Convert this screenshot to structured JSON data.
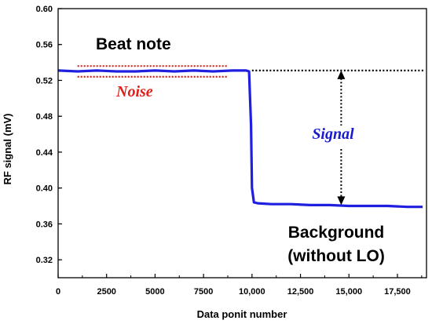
{
  "chart_data": {
    "type": "line",
    "xlabel": "Data ponit number",
    "ylabel": "RF signal (mV)",
    "xlim": [
      0,
      19000
    ],
    "ylim": [
      0.3,
      0.6
    ],
    "x_ticks": [
      0,
      2500,
      5000,
      7500,
      10000,
      12500,
      15000,
      17500
    ],
    "x_tick_labels": [
      "0",
      "2500",
      "5000",
      "7500",
      "10,000",
      "12,500",
      "15,000",
      "17,500"
    ],
    "y_ticks": [
      0.32,
      0.36,
      0.4,
      0.44,
      0.48,
      0.52,
      0.56,
      0.6
    ],
    "y_tick_labels": [
      "0.32",
      "0.36",
      "0.40",
      "0.44",
      "0.48",
      "0.52",
      "0.56",
      "0.60"
    ],
    "grid": false,
    "series": [
      {
        "color": "#1f1fe0",
        "x": [
          0,
          1000,
          2000,
          3000,
          4000,
          5000,
          6000,
          7000,
          8000,
          9000,
          9700,
          9850,
          9950,
          10000,
          10100,
          10300,
          11000,
          12000,
          13000,
          14000,
          15000,
          16000,
          17000,
          18000,
          18800
        ],
        "y": [
          0.531,
          0.53,
          0.531,
          0.53,
          0.53,
          0.531,
          0.53,
          0.531,
          0.53,
          0.531,
          0.531,
          0.53,
          0.47,
          0.4,
          0.384,
          0.383,
          0.382,
          0.382,
          0.381,
          0.381,
          0.38,
          0.38,
          0.38,
          0.379,
          0.379
        ]
      }
    ],
    "annotations": {
      "beat_note": "Beat note",
      "noise": "Noise",
      "signal": "Signal",
      "background_line1": "Background",
      "background_line2": "(without LO)"
    },
    "annotation_colors": {
      "noise": "#e0201a",
      "signal": "#1a1ad0",
      "arrow": "#000000"
    },
    "noise_band": [
      0.524,
      0.536
    ],
    "noise_band_x": [
      1000,
      8700
    ],
    "reference_line_y": 0.531,
    "reference_line_x": [
      10000,
      19000
    ],
    "signal_arrow_x": 14600,
    "signal_arrow_y": [
      0.381,
      0.531
    ]
  }
}
